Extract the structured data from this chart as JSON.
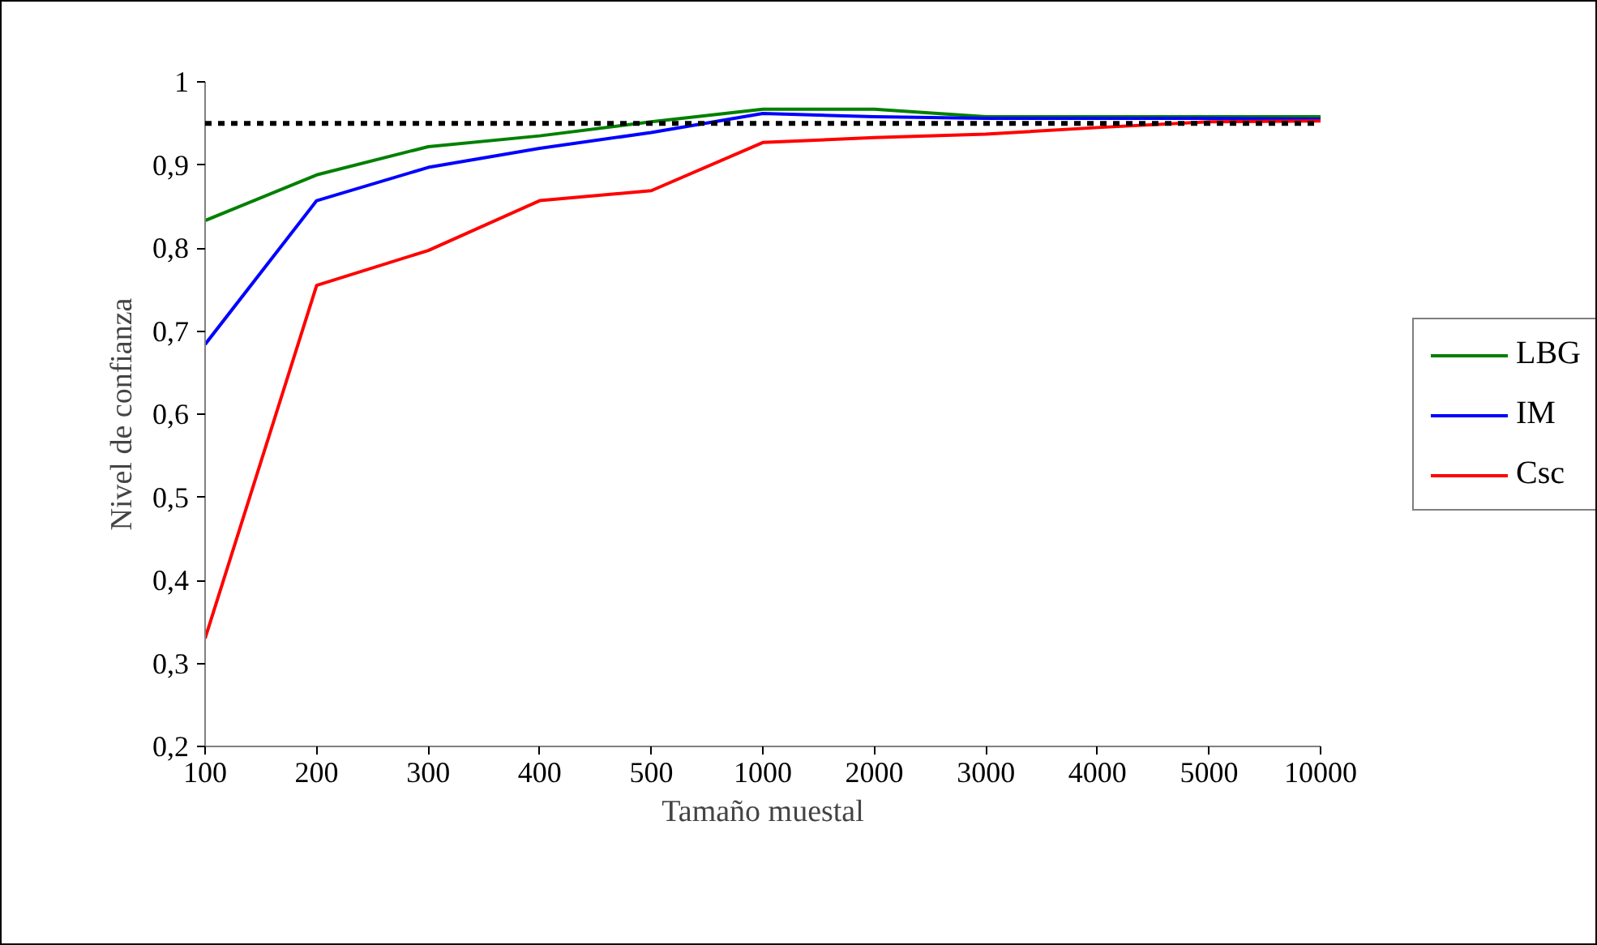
{
  "chart_data": {
    "type": "line",
    "xlabel": "Tamaño muestal",
    "ylabel": "Nivel de confianza",
    "categories": [
      "100",
      "200",
      "300",
      "400",
      "500",
      "1000",
      "2000",
      "3000",
      "4000",
      "5000",
      "10000"
    ],
    "series": [
      {
        "name": "LBG",
        "color": "#008000",
        "values": [
          0.833,
          0.888,
          0.922,
          0.935,
          0.952,
          0.967,
          0.967,
          0.958,
          0.958,
          0.958,
          0.958
        ]
      },
      {
        "name": "IM",
        "color": "#0000ff",
        "values": [
          0.684,
          0.857,
          0.897,
          0.92,
          0.939,
          0.962,
          0.958,
          0.956,
          0.956,
          0.956,
          0.955
        ]
      },
      {
        "name": "Csc",
        "color": "#ff0000",
        "values": [
          0.33,
          0.755,
          0.797,
          0.857,
          0.869,
          0.927,
          0.933,
          0.937,
          0.945,
          0.952,
          0.953
        ]
      }
    ],
    "ylim": [
      0.2,
      1
    ],
    "yticks": [
      {
        "value": 0.2,
        "label": "0,2"
      },
      {
        "value": 0.3,
        "label": "0,3"
      },
      {
        "value": 0.4,
        "label": "0,4"
      },
      {
        "value": 0.5,
        "label": "0,5"
      },
      {
        "value": 0.6,
        "label": "0,6"
      },
      {
        "value": 0.7,
        "label": "0,7"
      },
      {
        "value": 0.8,
        "label": "0,8"
      },
      {
        "value": 0.9,
        "label": "0,9"
      },
      1
    ],
    "ref_lines": [
      {
        "axis": "y",
        "value": 0.95,
        "color": "#000000",
        "line_style": "dotted"
      }
    ],
    "grid": false,
    "legend": "right",
    "marker": "none",
    "line_style": "solid"
  }
}
